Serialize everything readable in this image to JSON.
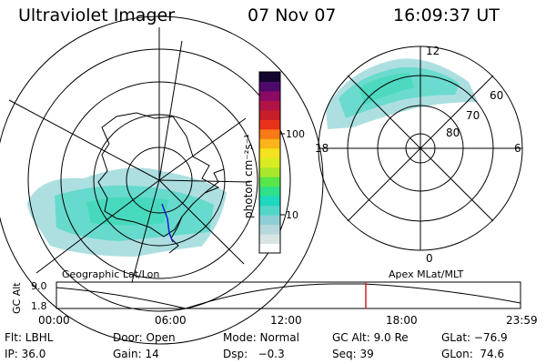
{
  "header": {
    "instrument": "Ultraviolet Imager",
    "date": "07 Nov 07",
    "time": "16:09:37 UT"
  },
  "colorbar": {
    "unit_label": "photon cm⁻²s⁻¹",
    "ticks": [
      "100",
      "10"
    ],
    "colors": [
      "#ffffff",
      "#d8e4e4",
      "#b6d8dc",
      "#8ecfd6",
      "#52d6c8",
      "#1ed8c0",
      "#2ee08a",
      "#59e64a",
      "#a8e82c",
      "#d9ec22",
      "#f4e21e",
      "#fcb41a",
      "#f77a16",
      "#e8321a",
      "#c81e2a",
      "#b01446",
      "#8c0a64",
      "#4e0a6a",
      "#12062e"
    ]
  },
  "left_map": {
    "caption": "Geographic Lat/Lon"
  },
  "right_map": {
    "caption": "Apex MLat/MLT",
    "mlt_labels": [
      "12",
      "18",
      "6",
      "0"
    ],
    "lat_labels": [
      "60",
      "70",
      "80"
    ]
  },
  "altitude_strip": {
    "y_label": "GC Alt",
    "y_ticks": [
      "9.0",
      "1.8"
    ],
    "x_ticks": [
      "00:00",
      "06:00",
      "12:00",
      "18:00",
      "23:59"
    ],
    "current_time_color": "#cc2222"
  },
  "status": {
    "row1": {
      "flt": "Flt: LBHL",
      "door": "Door: Open",
      "mode": "Mode: Normal",
      "gc_alt": "GC Alt: 9.0 Re",
      "glat": "GLat: −76.9"
    },
    "row2": {
      "ip": "IP: 36.0",
      "gain": "Gain: 14",
      "dsp": "Dsp:   −0.3",
      "seq": "Seq: 39",
      "glon": "GLon:  74.6"
    }
  }
}
